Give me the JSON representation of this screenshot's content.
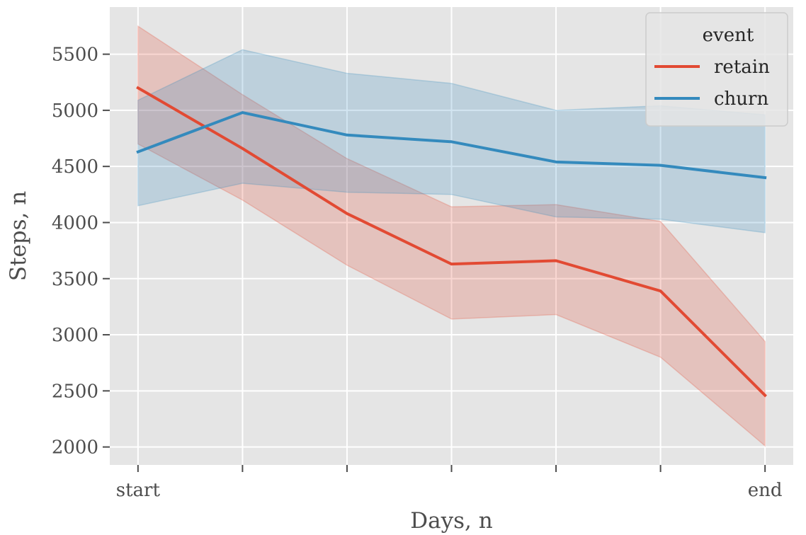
{
  "chart_data": {
    "type": "line",
    "x": [
      0,
      1,
      2,
      3,
      4,
      5,
      6
    ],
    "x_tick_labels": [
      "start",
      "",
      "",
      "",
      "",
      "",
      "end"
    ],
    "xlabel": "Days, n",
    "ylabel": "Steps, n",
    "ylim": [
      1840,
      5920
    ],
    "y_ticks": [
      2000,
      2500,
      3000,
      3500,
      4000,
      4500,
      5000,
      5500
    ],
    "grid": true,
    "legend": {
      "title": "event",
      "placement": "top-right"
    },
    "series": [
      {
        "name": "retain",
        "color": "#E24A33",
        "values": [
          5200,
          4660,
          4080,
          3630,
          3660,
          3390,
          2460
        ],
        "ci_upper": [
          5750,
          5140,
          4570,
          4140,
          4160,
          4010,
          2940
        ],
        "ci_lower": [
          4700,
          4200,
          3620,
          3140,
          3180,
          2800,
          2010
        ]
      },
      {
        "name": "churn",
        "color": "#348ABD",
        "values": [
          4630,
          4980,
          4780,
          4720,
          4540,
          4510,
          4400
        ],
        "ci_upper": [
          5090,
          5540,
          5330,
          5240,
          5000,
          5040,
          4960
        ],
        "ci_lower": [
          4150,
          4350,
          4270,
          4250,
          4050,
          4030,
          3910
        ]
      }
    ]
  }
}
